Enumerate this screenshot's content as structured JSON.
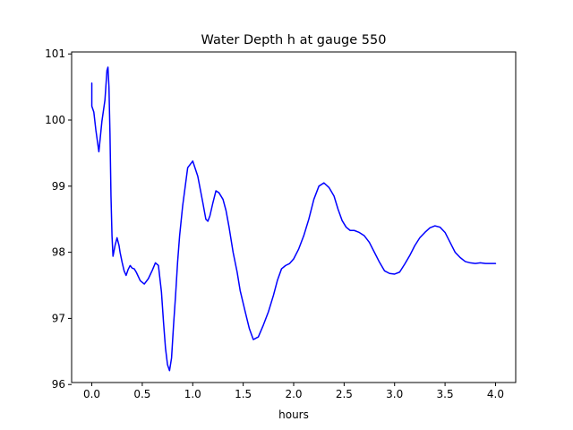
{
  "chart_data": {
    "type": "line",
    "title": "Water Depth h at gauge 550",
    "xlabel": "hours",
    "ylabel": "",
    "xlim": [
      -0.2,
      4.2
    ],
    "ylim": [
      96.03,
      101.03
    ],
    "grid": false,
    "legend": "none",
    "x_ticks": [
      0.0,
      0.5,
      1.0,
      1.5,
      2.0,
      2.5,
      3.0,
      3.5,
      4.0
    ],
    "x_tick_labels": [
      "0.0",
      "0.5",
      "1.0",
      "1.5",
      "2.0",
      "2.5",
      "3.0",
      "3.5",
      "4.0"
    ],
    "y_ticks": [
      96,
      97,
      98,
      99,
      100,
      101
    ],
    "y_tick_labels": [
      "96",
      "97",
      "98",
      "99",
      "100",
      "101"
    ],
    "series": [
      {
        "color": "#0000ff",
        "x": [
          0.0,
          0.0,
          0.0,
          0.02,
          0.04,
          0.07,
          0.1,
          0.13,
          0.15,
          0.16,
          0.17,
          0.18,
          0.19,
          0.2,
          0.21,
          0.23,
          0.25,
          0.27,
          0.28,
          0.3,
          0.32,
          0.34,
          0.36,
          0.38,
          0.4,
          0.42,
          0.44,
          0.48,
          0.52,
          0.56,
          0.6,
          0.63,
          0.66,
          0.69,
          0.71,
          0.73,
          0.75,
          0.77,
          0.79,
          0.81,
          0.83,
          0.85,
          0.87,
          0.9,
          0.95,
          1.0,
          1.05,
          1.1,
          1.13,
          1.15,
          1.17,
          1.2,
          1.23,
          1.26,
          1.3,
          1.33,
          1.36,
          1.4,
          1.44,
          1.47,
          1.52,
          1.56,
          1.6,
          1.65,
          1.7,
          1.75,
          1.8,
          1.84,
          1.88,
          1.92,
          1.96,
          2.0,
          2.05,
          2.1,
          2.15,
          2.2,
          2.25,
          2.3,
          2.35,
          2.4,
          2.44,
          2.48,
          2.52,
          2.56,
          2.6,
          2.65,
          2.7,
          2.75,
          2.8,
          2.85,
          2.9,
          2.95,
          3.0,
          3.05,
          3.1,
          3.15,
          3.2,
          3.25,
          3.3,
          3.35,
          3.4,
          3.45,
          3.5,
          3.55,
          3.6,
          3.65,
          3.7,
          3.75,
          3.8,
          3.85,
          3.9,
          3.95,
          4.0
        ],
        "y": [
          100.56,
          100.35,
          100.21,
          100.12,
          99.85,
          99.52,
          99.98,
          100.3,
          100.75,
          100.8,
          100.5,
          99.8,
          98.85,
          98.25,
          97.94,
          98.1,
          98.22,
          98.1,
          98.0,
          97.85,
          97.72,
          97.65,
          97.74,
          97.8,
          97.76,
          97.75,
          97.7,
          97.57,
          97.52,
          97.6,
          97.73,
          97.84,
          97.8,
          97.4,
          96.95,
          96.55,
          96.3,
          96.21,
          96.4,
          96.9,
          97.35,
          97.85,
          98.25,
          98.7,
          99.28,
          99.38,
          99.15,
          98.75,
          98.5,
          98.47,
          98.55,
          98.75,
          98.93,
          98.9,
          98.8,
          98.63,
          98.38,
          98.0,
          97.7,
          97.42,
          97.1,
          96.85,
          96.68,
          96.72,
          96.9,
          97.1,
          97.35,
          97.58,
          97.75,
          97.8,
          97.83,
          97.9,
          98.05,
          98.25,
          98.5,
          98.8,
          99.0,
          99.05,
          98.98,
          98.85,
          98.65,
          98.48,
          98.38,
          98.33,
          98.33,
          98.3,
          98.25,
          98.15,
          98.0,
          97.85,
          97.72,
          97.68,
          97.67,
          97.7,
          97.82,
          97.95,
          98.1,
          98.22,
          98.3,
          98.37,
          98.4,
          98.38,
          98.3,
          98.15,
          98.0,
          97.92,
          97.86,
          97.84,
          97.83,
          97.84,
          97.83,
          97.83,
          97.83
        ]
      }
    ]
  }
}
